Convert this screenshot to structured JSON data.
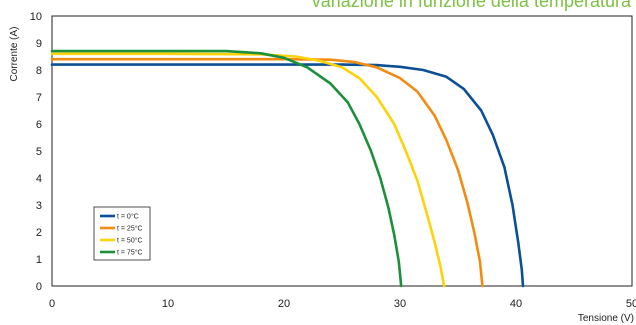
{
  "chart_data": {
    "type": "line",
    "title": "variazione in funzione della temperatura",
    "xlabel": "Tensione (V)",
    "ylabel": "Corrente (A)",
    "xlim": [
      0,
      50
    ],
    "ylim": [
      0,
      10
    ],
    "x_ticks": [
      "0",
      "10",
      "20",
      "30",
      "40",
      "50"
    ],
    "y_ticks": [
      "0",
      "1",
      "2",
      "3",
      "4",
      "5",
      "6",
      "7",
      "8",
      "9",
      "10"
    ],
    "grid": false,
    "legend_position": "bottom-left",
    "series": [
      {
        "name": "t = 0°C",
        "color": "#0b4f94",
        "points": [
          [
            0,
            8.2
          ],
          [
            10,
            8.2
          ],
          [
            20,
            8.2
          ],
          [
            25,
            8.2
          ],
          [
            28,
            8.18
          ],
          [
            30,
            8.12
          ],
          [
            32,
            8.0
          ],
          [
            34,
            7.75
          ],
          [
            35.5,
            7.3
          ],
          [
            37,
            6.5
          ],
          [
            38,
            5.6
          ],
          [
            39,
            4.4
          ],
          [
            39.7,
            3.0
          ],
          [
            40.2,
            1.6
          ],
          [
            40.5,
            0.6
          ],
          [
            40.6,
            0
          ]
        ]
      },
      {
        "name": "t = 25°C",
        "color": "#f08c12",
        "points": [
          [
            0,
            8.4
          ],
          [
            10,
            8.4
          ],
          [
            20,
            8.4
          ],
          [
            24,
            8.38
          ],
          [
            26,
            8.3
          ],
          [
            28,
            8.1
          ],
          [
            30,
            7.7
          ],
          [
            31.5,
            7.2
          ],
          [
            33,
            6.3
          ],
          [
            34,
            5.4
          ],
          [
            35,
            4.3
          ],
          [
            35.8,
            3.1
          ],
          [
            36.4,
            2.0
          ],
          [
            36.9,
            0.9
          ],
          [
            37.1,
            0
          ]
        ]
      },
      {
        "name": "t = 50°C",
        "color": "#fcd20a",
        "points": [
          [
            0,
            8.6
          ],
          [
            10,
            8.6
          ],
          [
            18,
            8.58
          ],
          [
            21,
            8.5
          ],
          [
            23,
            8.35
          ],
          [
            25,
            8.1
          ],
          [
            26.5,
            7.7
          ],
          [
            28,
            7.0
          ],
          [
            29.5,
            6.0
          ],
          [
            30.5,
            5.0
          ],
          [
            31.5,
            3.9
          ],
          [
            32.3,
            2.7
          ],
          [
            33,
            1.6
          ],
          [
            33.5,
            0.7
          ],
          [
            33.8,
            0
          ]
        ]
      },
      {
        "name": "t = 75°C",
        "color": "#1b8f3a",
        "points": [
          [
            0,
            8.7
          ],
          [
            10,
            8.7
          ],
          [
            15,
            8.7
          ],
          [
            18,
            8.62
          ],
          [
            20,
            8.45
          ],
          [
            22,
            8.1
          ],
          [
            24,
            7.5
          ],
          [
            25.5,
            6.8
          ],
          [
            26.5,
            6.0
          ],
          [
            27.5,
            5.0
          ],
          [
            28.3,
            4.0
          ],
          [
            29,
            2.9
          ],
          [
            29.5,
            1.9
          ],
          [
            29.9,
            0.9
          ],
          [
            30.1,
            0
          ]
        ]
      }
    ]
  }
}
